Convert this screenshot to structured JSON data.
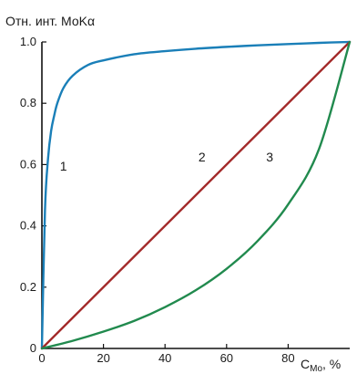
{
  "chart_data": {
    "type": "line",
    "ylabel": "Отн. инт. МоKα",
    "xlabel_main": "C",
    "xlabel_sub": "Mo",
    "xlabel_unit": ", %",
    "xlim": [
      0,
      100
    ],
    "ylim": [
      0,
      1.0
    ],
    "x_ticks": [
      0,
      20,
      40,
      60,
      80
    ],
    "x_tick_labels": [
      "0",
      "20",
      "40",
      "60",
      "80"
    ],
    "y_ticks": [
      0,
      0.2,
      0.4,
      0.6,
      0.8,
      1.0
    ],
    "y_tick_labels": [
      "0",
      "0.2",
      "0.4",
      "0.6",
      "0.8",
      "1.0"
    ],
    "grid": false,
    "series": [
      {
        "label": "1",
        "color": "#1a7fb8",
        "x": [
          0,
          1,
          2,
          3,
          4,
          5,
          7,
          10,
          15,
          20,
          30,
          40,
          50,
          60,
          70,
          80,
          90,
          100
        ],
        "y": [
          0.0,
          0.45,
          0.62,
          0.71,
          0.76,
          0.8,
          0.85,
          0.89,
          0.925,
          0.94,
          0.96,
          0.97,
          0.978,
          0.984,
          0.989,
          0.993,
          0.997,
          1.0
        ]
      },
      {
        "label": "2",
        "color": "#a32a2a",
        "x": [
          0,
          100
        ],
        "y": [
          0.0,
          1.0
        ]
      },
      {
        "label": "3",
        "color": "#218a4e",
        "x": [
          0,
          10,
          20,
          30,
          40,
          50,
          60,
          70,
          80,
          90,
          100
        ],
        "y": [
          0.0,
          0.025,
          0.055,
          0.09,
          0.135,
          0.19,
          0.26,
          0.35,
          0.47,
          0.65,
          1.0
        ]
      }
    ],
    "curve_labels": [
      {
        "text": "1",
        "x": 7,
        "y": 0.58
      },
      {
        "text": "2",
        "x": 52,
        "y": 0.61
      },
      {
        "text": "3",
        "x": 74,
        "y": 0.61
      }
    ]
  }
}
